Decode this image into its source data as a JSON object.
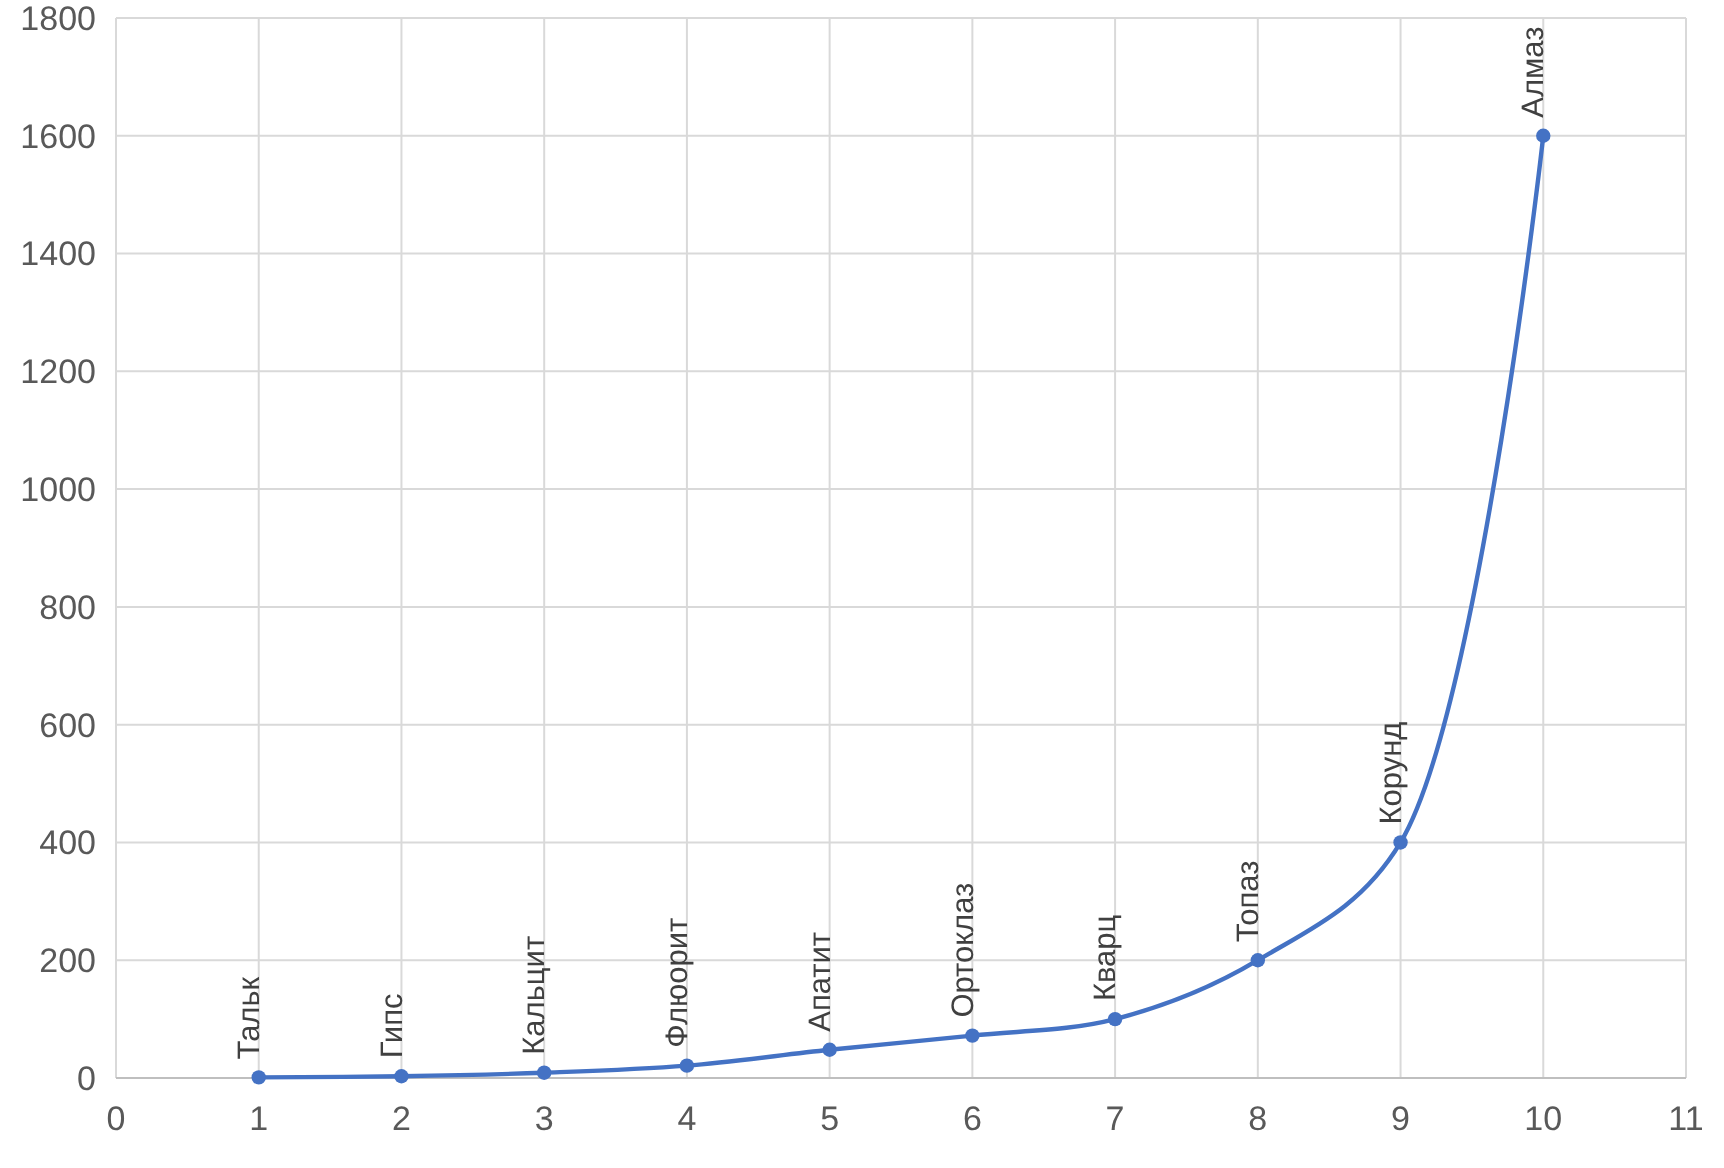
{
  "chart_data": {
    "type": "line",
    "x": [
      1,
      2,
      3,
      4,
      5,
      6,
      7,
      8,
      9,
      10
    ],
    "series": [
      {
        "color": "#4472c4",
        "values": [
          1,
          3,
          9,
          21,
          48,
          72,
          100,
          200,
          400,
          1600
        ]
      }
    ],
    "xlim": [
      0,
      11
    ],
    "xticks": [
      0,
      1,
      2,
      3,
      4,
      5,
      6,
      7,
      8,
      9,
      10,
      11
    ],
    "ylim": [
      0,
      1800
    ],
    "yticks": [
      0,
      200,
      400,
      600,
      800,
      1000,
      1200,
      1400,
      1600,
      1800
    ],
    "grid": true,
    "marker": "circle",
    "line_style": "solid",
    "annotations": [
      {
        "text": "Тальк",
        "x": 1,
        "y": 1
      },
      {
        "text": "Гипс",
        "x": 2,
        "y": 3
      },
      {
        "text": "Кальцит",
        "x": 3,
        "y": 9
      },
      {
        "text": "Флюорит",
        "x": 4,
        "y": 21
      },
      {
        "text": "Апатит",
        "x": 5,
        "y": 48
      },
      {
        "text": "Ортоклаз",
        "x": 6,
        "y": 72
      },
      {
        "text": "Кварц",
        "x": 7,
        "y": 100
      },
      {
        "text": "Топаз",
        "x": 8,
        "y": 200
      },
      {
        "text": "Корунд",
        "x": 9,
        "y": 400
      },
      {
        "text": "Алмаз",
        "x": 10,
        "y": 1600
      }
    ]
  }
}
